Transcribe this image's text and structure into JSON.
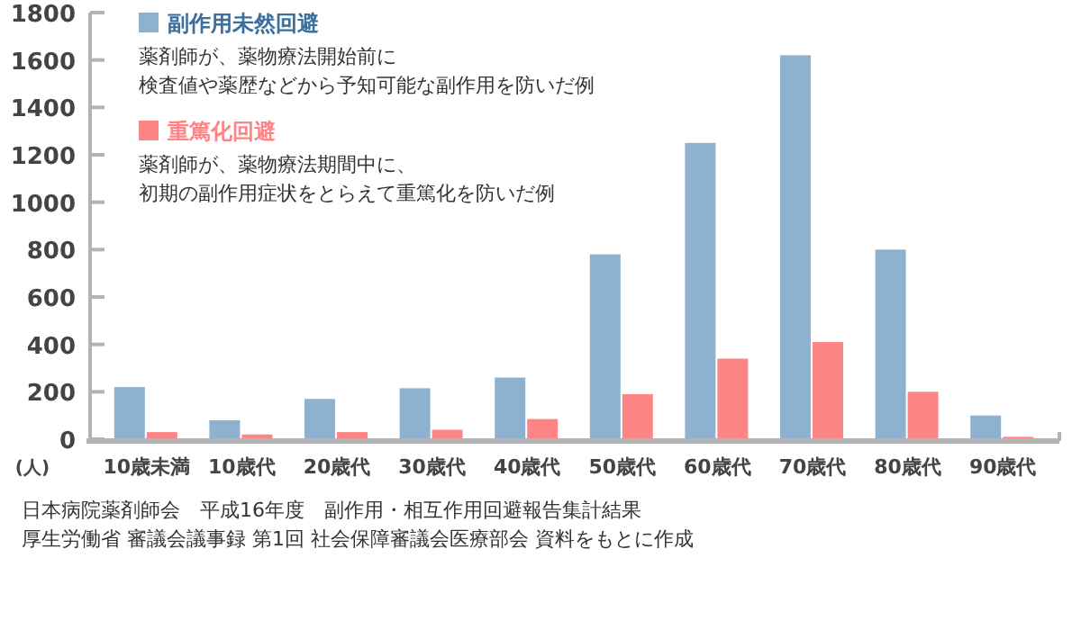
{
  "chart_data": {
    "type": "bar",
    "ylabel": "(人)",
    "categories": [
      "10歳未満",
      "10歳代",
      "20歳代",
      "30歳代",
      "40歳代",
      "50歳代",
      "60歳代",
      "70歳代",
      "80歳代",
      "90歳代"
    ],
    "series": [
      {
        "name": "副作用未然回避",
        "color": "#8fb1d0",
        "values": [
          220,
          80,
          170,
          215,
          260,
          780,
          1250,
          1620,
          800,
          100
        ]
      },
      {
        "name": "重篤化回避",
        "color": "#fe8585",
        "values": [
          30,
          20,
          30,
          40,
          85,
          190,
          340,
          410,
          200,
          10
        ]
      }
    ],
    "ylim": [
      0,
      1800
    ],
    "yticks": [
      0,
      200,
      400,
      600,
      800,
      1000,
      1200,
      1400,
      1600,
      1800
    ],
    "grid": false,
    "legend": "top left",
    "annotations": [
      "薬剤師が、薬物療法開始前に",
      "検査値や薬歴などから予知可能な副作用を防いだ例",
      "薬剤師が、薬物療法期間中に、",
      "初期の副作用症状をとらえて重篤化を防いだ例",
      "日本病院薬剤師会　平成16年度　副作用・相互作用回避報告集計結果",
      "厚生労働省 審議会議事録 第1回 社会保障審議会医療部会 資料をもとに作成"
    ]
  }
}
